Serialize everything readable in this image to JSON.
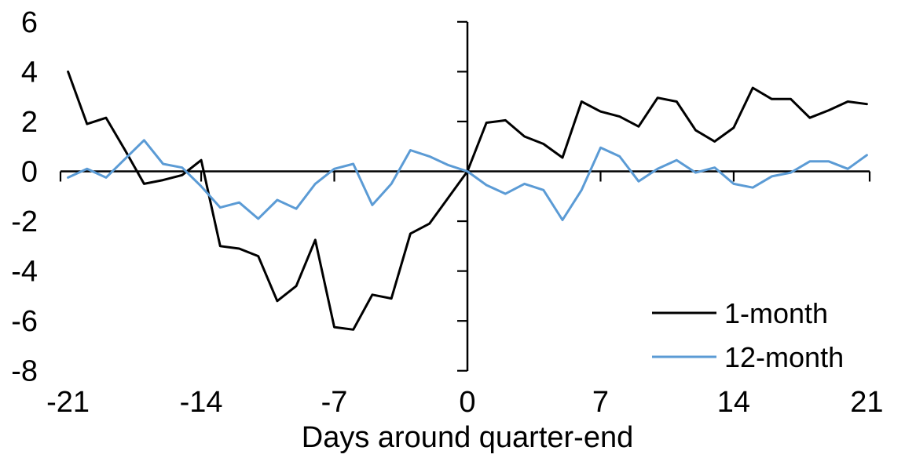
{
  "figure": {
    "background": "#ffffff",
    "axis_color": "#000000",
    "text_color": "#000000"
  },
  "chart_data": {
    "type": "line",
    "title": "",
    "xlabel": "Days around quarter-end",
    "ylabel": "",
    "x": [
      -21,
      -20,
      -19,
      -18,
      -17,
      -16,
      -15,
      -14,
      -13,
      -12,
      -11,
      -10,
      -9,
      -8,
      -7,
      -6,
      -5,
      -4,
      -3,
      -2,
      -1,
      0,
      1,
      2,
      3,
      4,
      5,
      6,
      7,
      8,
      9,
      10,
      11,
      12,
      13,
      14,
      15,
      16,
      17,
      18,
      19,
      20,
      21
    ],
    "series": [
      {
        "name": "1-month",
        "color": "#000000",
        "values": [
          4.0,
          1.9,
          2.15,
          0.85,
          -0.5,
          -0.35,
          -0.15,
          0.45,
          -3.0,
          -3.1,
          -3.4,
          -5.2,
          -4.6,
          -2.75,
          -6.25,
          -6.35,
          -4.95,
          -5.1,
          -2.5,
          -2.1,
          -1.05,
          0.0,
          1.95,
          2.05,
          1.4,
          1.1,
          0.55,
          2.8,
          2.4,
          2.2,
          1.8,
          2.95,
          2.8,
          1.65,
          1.2,
          1.75,
          3.35,
          2.9,
          2.9,
          2.15,
          2.45,
          2.8,
          2.7
        ]
      },
      {
        "name": "12-month",
        "color": "#5B9BD5",
        "values": [
          -0.25,
          0.1,
          -0.25,
          0.5,
          1.25,
          0.3,
          0.15,
          -0.6,
          -1.45,
          -1.25,
          -1.9,
          -1.15,
          -1.5,
          -0.5,
          0.1,
          0.3,
          -1.35,
          -0.5,
          0.85,
          0.6,
          0.25,
          0.0,
          -0.55,
          -0.9,
          -0.5,
          -0.75,
          -1.95,
          -0.75,
          0.95,
          0.6,
          -0.4,
          0.1,
          0.45,
          -0.05,
          0.15,
          -0.5,
          -0.65,
          -0.2,
          -0.05,
          0.4,
          0.4,
          0.1,
          0.65
        ]
      }
    ],
    "x_tick_labels": [
      -21,
      -14,
      -7,
      0,
      7,
      14,
      21
    ],
    "x_interior_tick_days": [
      -14,
      -7,
      7,
      14
    ],
    "y_tick_labels": [
      6,
      4,
      2,
      0,
      -2,
      -4,
      -6,
      -8
    ],
    "y_tick_marks": [
      6,
      4,
      2,
      -2,
      -4,
      -6,
      -8
    ],
    "xlim": [
      -21.4,
      21.15
    ],
    "ylim": [
      -8,
      6
    ],
    "grid": false,
    "legend_position": "inside-lower-right"
  }
}
